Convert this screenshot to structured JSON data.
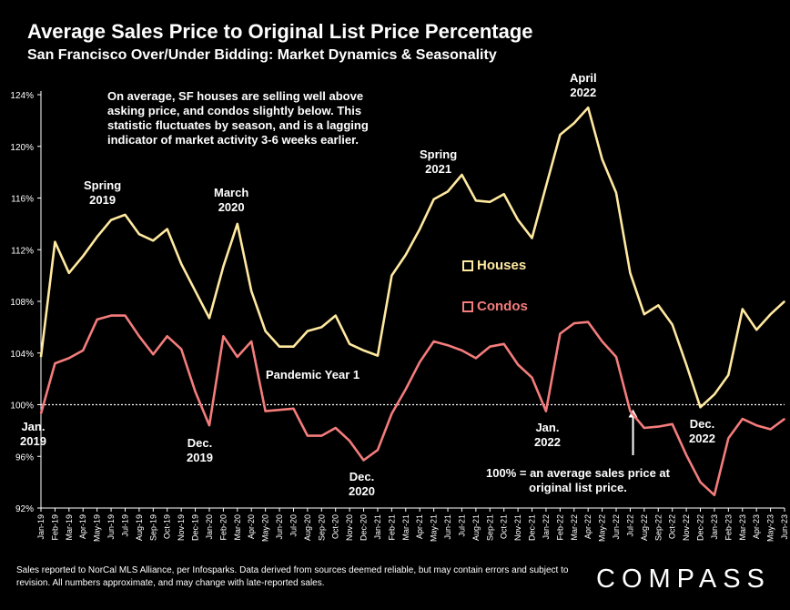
{
  "title": "Average Sales Price to Original List Price Percentage",
  "subtitle": "San Francisco Over/Under Bidding: Market Dynamics & Seasonality",
  "note": "On average, SF houses are selling well above asking price, and condos slightly below. This statistic fluctuates by season, and is a lagging indicator of market activity 3-6 weeks earlier.",
  "note_100": "100% = an average sales price at original list price.",
  "footnote": "Sales reported to NorCal MLS Alliance, per Infosparks. Data derived from sources deemed reliable, but may contain errors and subject to revision. All numbers approximate, and may change with late-reported sales.",
  "logo": "COMPASS",
  "annotations": {
    "jan2019": "Jan.\n2019",
    "spring2019": "Spring\n2019",
    "dec2019": "Dec.\n2019",
    "march2020": "March\n2020",
    "pandemic": "Pandemic Year 1",
    "dec2020": "Dec.\n2020",
    "spring2021": "Spring\n2021",
    "jan2022": "Jan.\n2022",
    "april2022": "April\n2022",
    "dec2022": "Dec.\n2022"
  },
  "colors": {
    "houses": "#FFE9A0",
    "condos": "#F47C7C",
    "background": "#000000",
    "axis": "#ffffff"
  },
  "chart_data": {
    "type": "line",
    "title": "Average Sales Price to Original List Price Percentage",
    "subtitle": "San Francisco Over/Under Bidding: Market Dynamics & Seasonality",
    "ylim": [
      92,
      124
    ],
    "yticks": [
      "92%",
      "96%",
      "100%",
      "104%",
      "108%",
      "112%",
      "116%",
      "120%",
      "124%"
    ],
    "ytick_values": [
      92,
      96,
      100,
      104,
      108,
      112,
      116,
      120,
      124
    ],
    "reference_line": 100,
    "legend_position": "center",
    "categories": [
      "Jan-19",
      "Feb-19",
      "Mar-19",
      "Apr-19",
      "May-19",
      "Jun-19",
      "Jul-19",
      "Aug-19",
      "Sep-19",
      "Oct-19",
      "Nov-19",
      "Dec-19",
      "Jan-20",
      "Feb-20",
      "Mar-20",
      "Apr-20",
      "May-20",
      "Jun-20",
      "Jul-20",
      "Aug-20",
      "Sep-20",
      "Oct-20",
      "Nov-20",
      "Dec-20",
      "Jan-21",
      "Feb-21",
      "Mar-21",
      "Apr-21",
      "May-21",
      "Jun-21",
      "Jul-21",
      "Aug-21",
      "Sep-21",
      "Oct-21",
      "Nov-21",
      "Dec-21",
      "Jan-22",
      "Feb-22",
      "Mar-22",
      "Apr-22",
      "May-22",
      "Jun-22",
      "Jul-22",
      "Aug-22",
      "Sep-22",
      "Oct-22",
      "Nov-22",
      "Dec-22",
      "Jan-23",
      "Feb-23",
      "Mar-23",
      "Apr-23",
      "May-23",
      "Jun-23"
    ],
    "series": [
      {
        "name": "Houses",
        "values": [
          103.7,
          112.6,
          110.2,
          111.5,
          113.0,
          114.3,
          114.7,
          113.2,
          112.7,
          113.6,
          110.9,
          108.8,
          106.7,
          110.7,
          114.0,
          108.8,
          105.7,
          104.5,
          104.5,
          105.7,
          106.0,
          106.9,
          104.7,
          104.2,
          103.8,
          110.0,
          111.6,
          113.6,
          115.9,
          116.5,
          117.8,
          115.8,
          115.7,
          116.3,
          114.3,
          112.9,
          116.9,
          120.9,
          121.8,
          123.0,
          119.0,
          116.4,
          110.2,
          107.0,
          107.7,
          106.2,
          103.1,
          99.8,
          100.8,
          102.3,
          107.4,
          105.8,
          107.0,
          108.0
        ]
      },
      {
        "name": "Condos",
        "values": [
          99.3,
          103.2,
          103.6,
          104.2,
          106.6,
          106.9,
          106.9,
          105.3,
          103.9,
          105.3,
          104.3,
          101.0,
          98.4,
          105.3,
          103.7,
          104.9,
          99.5,
          99.6,
          99.7,
          97.6,
          97.6,
          98.2,
          97.2,
          95.7,
          96.5,
          99.3,
          101.2,
          103.3,
          104.9,
          104.6,
          104.2,
          103.6,
          104.5,
          104.7,
          103.1,
          102.1,
          99.5,
          105.5,
          106.3,
          106.4,
          104.9,
          103.7,
          99.5,
          98.2,
          98.3,
          98.5,
          96.1,
          94.0,
          93.0,
          97.4,
          98.9,
          98.4,
          98.1,
          98.9
        ]
      }
    ]
  }
}
